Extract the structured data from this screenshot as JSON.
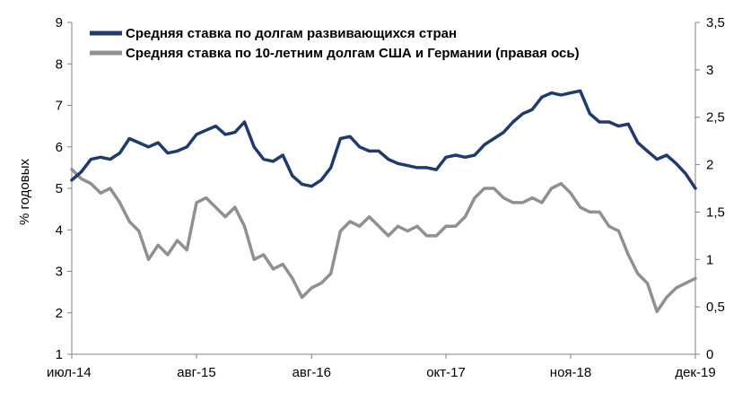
{
  "chart_data": {
    "type": "line",
    "title": "",
    "ylabel": "% годовых",
    "y2label": "",
    "ylim": [
      1,
      9
    ],
    "y2lim": [
      0,
      3.5
    ],
    "yticks": [
      "1",
      "2",
      "3",
      "4",
      "5",
      "6",
      "7",
      "8",
      "9"
    ],
    "y2ticks": [
      "0",
      "0,5",
      "1",
      "1,5",
      "2",
      "2,5",
      "3",
      "3,5"
    ],
    "x_tick_labels": [
      "июл-14",
      "авг-15",
      "авг-16",
      "окт-17",
      "ноя-18",
      "дек-19"
    ],
    "x_tick_months": [
      "2014-07",
      "2015-08",
      "2016-08",
      "2017-10",
      "2018-11",
      "2019-12"
    ],
    "grid": false,
    "legend_position": "top",
    "series": [
      {
        "name": "Средняя ставка по долгам развивающихся стран",
        "axis": "left",
        "color": "#1F3A6E",
        "points": [
          [
            "2014-07",
            5.2
          ],
          [
            "2014-08",
            5.4
          ],
          [
            "2014-09",
            5.7
          ],
          [
            "2014-10",
            5.75
          ],
          [
            "2014-11",
            5.7
          ],
          [
            "2014-12",
            5.85
          ],
          [
            "2015-01",
            6.2
          ],
          [
            "2015-02",
            6.1
          ],
          [
            "2015-03",
            6.0
          ],
          [
            "2015-04",
            6.1
          ],
          [
            "2015-05",
            5.85
          ],
          [
            "2015-06",
            5.9
          ],
          [
            "2015-07",
            6.0
          ],
          [
            "2015-08",
            6.3
          ],
          [
            "2015-09",
            6.4
          ],
          [
            "2015-10",
            6.5
          ],
          [
            "2015-11",
            6.3
          ],
          [
            "2015-12",
            6.35
          ],
          [
            "2016-01",
            6.6
          ],
          [
            "2016-02",
            6.0
          ],
          [
            "2016-03",
            5.7
          ],
          [
            "2016-04",
            5.65
          ],
          [
            "2016-05",
            5.8
          ],
          [
            "2016-06",
            5.3
          ],
          [
            "2016-07",
            5.1
          ],
          [
            "2016-08",
            5.05
          ],
          [
            "2016-09",
            5.2
          ],
          [
            "2016-10",
            5.5
          ],
          [
            "2016-11",
            6.2
          ],
          [
            "2016-12",
            6.25
          ],
          [
            "2017-01",
            6.0
          ],
          [
            "2017-02",
            5.9
          ],
          [
            "2017-03",
            5.9
          ],
          [
            "2017-04",
            5.7
          ],
          [
            "2017-05",
            5.6
          ],
          [
            "2017-06",
            5.55
          ],
          [
            "2017-07",
            5.5
          ],
          [
            "2017-08",
            5.5
          ],
          [
            "2017-09",
            5.45
          ],
          [
            "2017-10",
            5.75
          ],
          [
            "2017-11",
            5.8
          ],
          [
            "2017-12",
            5.75
          ],
          [
            "2018-01",
            5.8
          ],
          [
            "2018-02",
            6.05
          ],
          [
            "2018-03",
            6.2
          ],
          [
            "2018-04",
            6.35
          ],
          [
            "2018-05",
            6.6
          ],
          [
            "2018-06",
            6.8
          ],
          [
            "2018-07",
            6.9
          ],
          [
            "2018-08",
            7.2
          ],
          [
            "2018-09",
            7.3
          ],
          [
            "2018-10",
            7.25
          ],
          [
            "2018-11",
            7.3
          ],
          [
            "2018-12",
            7.35
          ],
          [
            "2019-01",
            6.8
          ],
          [
            "2019-02",
            6.6
          ],
          [
            "2019-03",
            6.6
          ],
          [
            "2019-04",
            6.5
          ],
          [
            "2019-05",
            6.55
          ],
          [
            "2019-06",
            6.1
          ],
          [
            "2019-07",
            5.9
          ],
          [
            "2019-08",
            5.7
          ],
          [
            "2019-09",
            5.8
          ],
          [
            "2019-10",
            5.6
          ],
          [
            "2019-11",
            5.35
          ],
          [
            "2019-12",
            5.0
          ]
        ]
      },
      {
        "name": "Средняя ставка по 10-летним  долгам США  и Германии (правая ось)",
        "axis": "right",
        "color": "#8E9193",
        "points": [
          [
            "2014-07",
            1.95
          ],
          [
            "2014-08",
            1.85
          ],
          [
            "2014-09",
            1.8
          ],
          [
            "2014-10",
            1.7
          ],
          [
            "2014-11",
            1.75
          ],
          [
            "2014-12",
            1.6
          ],
          [
            "2015-01",
            1.4
          ],
          [
            "2015-02",
            1.3
          ],
          [
            "2015-03",
            1.0
          ],
          [
            "2015-04",
            1.15
          ],
          [
            "2015-05",
            1.05
          ],
          [
            "2015-06",
            1.2
          ],
          [
            "2015-07",
            1.1
          ],
          [
            "2015-08",
            1.6
          ],
          [
            "2015-09",
            1.65
          ],
          [
            "2015-10",
            1.55
          ],
          [
            "2015-11",
            1.45
          ],
          [
            "2015-12",
            1.55
          ],
          [
            "2016-01",
            1.35
          ],
          [
            "2016-02",
            1.0
          ],
          [
            "2016-03",
            1.05
          ],
          [
            "2016-04",
            0.9
          ],
          [
            "2016-05",
            0.95
          ],
          [
            "2016-06",
            0.8
          ],
          [
            "2016-07",
            0.6
          ],
          [
            "2016-08",
            0.7
          ],
          [
            "2016-09",
            0.75
          ],
          [
            "2016-10",
            0.85
          ],
          [
            "2016-11",
            1.3
          ],
          [
            "2016-12",
            1.4
          ],
          [
            "2017-01",
            1.35
          ],
          [
            "2017-02",
            1.45
          ],
          [
            "2017-03",
            1.35
          ],
          [
            "2017-04",
            1.25
          ],
          [
            "2017-05",
            1.35
          ],
          [
            "2017-06",
            1.3
          ],
          [
            "2017-07",
            1.35
          ],
          [
            "2017-08",
            1.25
          ],
          [
            "2017-09",
            1.25
          ],
          [
            "2017-10",
            1.35
          ],
          [
            "2017-11",
            1.35
          ],
          [
            "2017-12",
            1.45
          ],
          [
            "2018-01",
            1.65
          ],
          [
            "2018-02",
            1.75
          ],
          [
            "2018-03",
            1.75
          ],
          [
            "2018-04",
            1.65
          ],
          [
            "2018-05",
            1.6
          ],
          [
            "2018-06",
            1.6
          ],
          [
            "2018-07",
            1.65
          ],
          [
            "2018-08",
            1.6
          ],
          [
            "2018-09",
            1.75
          ],
          [
            "2018-10",
            1.8
          ],
          [
            "2018-11",
            1.7
          ],
          [
            "2018-12",
            1.55
          ],
          [
            "2019-01",
            1.5
          ],
          [
            "2019-02",
            1.5
          ],
          [
            "2019-03",
            1.35
          ],
          [
            "2019-04",
            1.3
          ],
          [
            "2019-05",
            1.05
          ],
          [
            "2019-06",
            0.85
          ],
          [
            "2019-07",
            0.75
          ],
          [
            "2019-08",
            0.45
          ],
          [
            "2019-09",
            0.6
          ],
          [
            "2019-10",
            0.7
          ],
          [
            "2019-11",
            0.75
          ],
          [
            "2019-12",
            0.8
          ]
        ]
      }
    ]
  }
}
